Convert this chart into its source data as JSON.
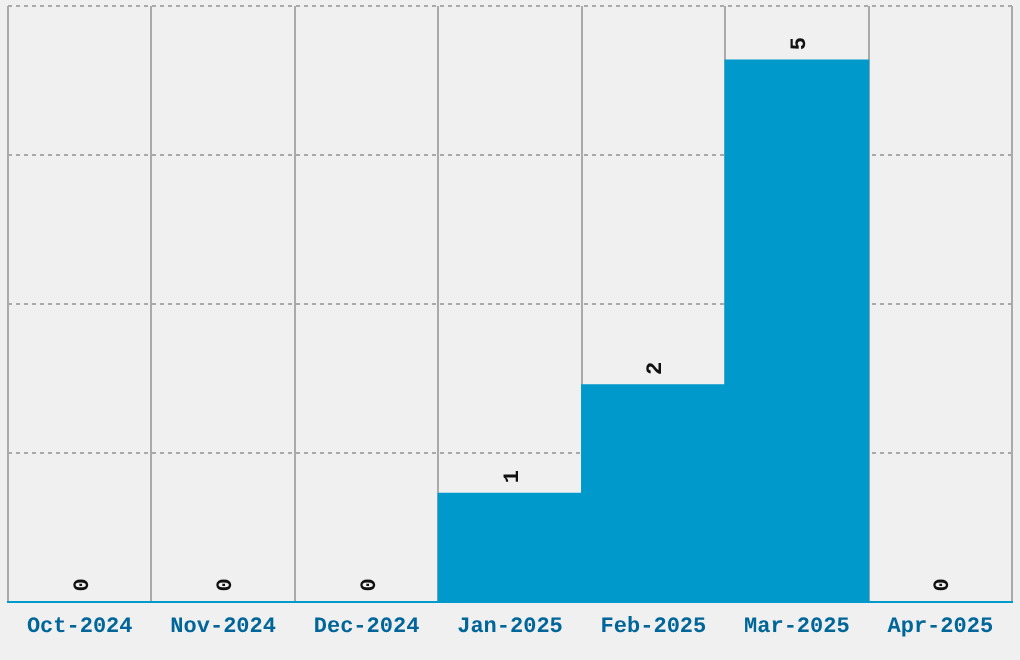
{
  "chart_data": {
    "type": "bar",
    "categories": [
      "Oct-2024",
      "Nov-2024",
      "Dec-2024",
      "Jan-2025",
      "Feb-2025",
      "Mar-2025",
      "Apr-2025"
    ],
    "values": [
      0,
      0,
      0,
      1,
      2,
      5,
      0
    ],
    "color": "#0099cc",
    "ylim": [
      0,
      5.5
    ],
    "yticks": [
      {
        "value": 0,
        "label": null
      },
      {
        "value": 1.375,
        "label": null
      },
      {
        "value": 2.75,
        "label": null
      },
      {
        "value": 4.125,
        "label": null
      },
      {
        "value": 5.5,
        "label": null
      }
    ],
    "grid": true,
    "tick_labels": "x",
    "data_labels": true,
    "legend": false
  }
}
